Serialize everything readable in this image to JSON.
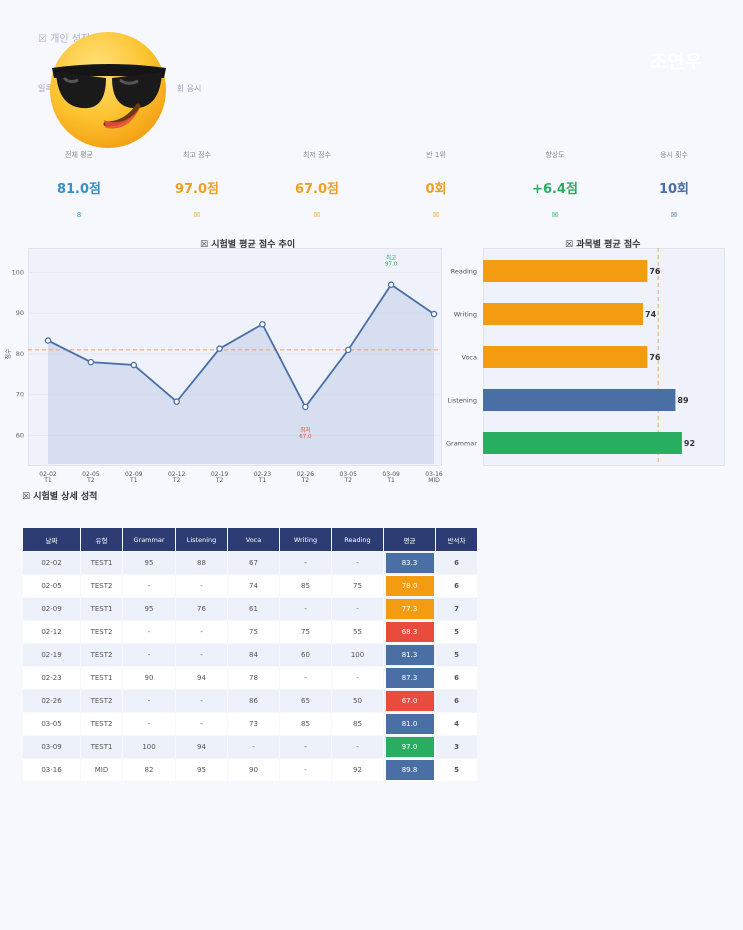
{
  "header": {
    "section_title": "☒ 개인 성적",
    "subtitle_left": "일목",
    "subtitle_right": "회 응시",
    "user_name": "조연우"
  },
  "stats": [
    {
      "label": "전체 평균",
      "value": "81.0점",
      "icon": "8",
      "color": "#3a8fc6"
    },
    {
      "label": "최고 점수",
      "value": "97.0점",
      "icon": "☒",
      "color": "#f0a020"
    },
    {
      "label": "최저 점수",
      "value": "67.0점",
      "icon": "☒",
      "color": "#f0a020"
    },
    {
      "label": "반 1위",
      "value": "0회",
      "icon": "☒",
      "color": "#f0a020"
    },
    {
      "label": "향상도",
      "value": "+6.4점",
      "icon": "☒",
      "color": "#27ae60"
    },
    {
      "label": "응시 횟수",
      "value": "10회",
      "icon": "☒",
      "color": "#4a6fa5"
    }
  ],
  "line_section": {
    "title": "☒ 시험별 평균 점수 추이",
    "ylabel": "점수",
    "max_label": "최고",
    "min_label": "최저"
  },
  "bar_section": {
    "title": "☒ 과목별 평균 점수"
  },
  "table_section": {
    "title": "☒ 시험별 상세 성적"
  },
  "chart_data": [
    {
      "type": "line",
      "title": "☒ 시험별 평균 점수 추이",
      "ylabel": "점수",
      "categories": [
        "02-02",
        "02-05",
        "02-09",
        "02-12",
        "02-19",
        "02-23",
        "02-26",
        "03-05",
        "03-09",
        "03-16"
      ],
      "sub_labels": [
        "T1",
        "T2",
        "T1",
        "T2",
        "T2",
        "T1",
        "T2",
        "T2",
        "T1",
        "MID"
      ],
      "values": [
        83.3,
        78.0,
        77.3,
        68.3,
        81.3,
        87.3,
        67.0,
        81.0,
        97.0,
        89.8
      ],
      "ylim": [
        53,
        106
      ],
      "yticks": [
        60,
        70,
        80,
        90,
        100
      ],
      "reference_line": 81.0,
      "annotations": [
        {
          "label": "최고",
          "value": "97.0"
        },
        {
          "label": "최저",
          "value": "67.0"
        }
      ]
    },
    {
      "type": "bar",
      "orientation": "horizontal",
      "title": "☒ 과목별 평균 점수",
      "categories": [
        "Reading",
        "Writing",
        "Voca",
        "Listening",
        "Grammar"
      ],
      "values": [
        76,
        74,
        76,
        89,
        92
      ],
      "colors": [
        "#f39c12",
        "#f39c12",
        "#f39c12",
        "#4a6fa5",
        "#27ae60"
      ],
      "xlim": [
        0,
        111
      ],
      "reference_line": 81.0
    },
    {
      "type": "table",
      "columns": [
        "날짜",
        "유형",
        "Grammar",
        "Listening",
        "Voca",
        "Writing",
        "Reading",
        "평균",
        "반석차"
      ],
      "rows": [
        [
          "02-02",
          "TEST1",
          "95",
          "88",
          "67",
          "-",
          "-",
          "83.3",
          "6"
        ],
        [
          "02-05",
          "TEST2",
          "-",
          "-",
          "74",
          "85",
          "75",
          "78.0",
          "6"
        ],
        [
          "02-09",
          "TEST1",
          "95",
          "76",
          "61",
          "-",
          "-",
          "77.3",
          "7"
        ],
        [
          "02-12",
          "TEST2",
          "-",
          "-",
          "75",
          "75",
          "55",
          "68.3",
          "5"
        ],
        [
          "02-19",
          "TEST2",
          "-",
          "-",
          "84",
          "60",
          "100",
          "81.3",
          "5"
        ],
        [
          "02-23",
          "TEST1",
          "90",
          "94",
          "78",
          "-",
          "-",
          "87.3",
          "6"
        ],
        [
          "02-26",
          "TEST2",
          "-",
          "-",
          "86",
          "65",
          "50",
          "67.0",
          "6"
        ],
        [
          "03-05",
          "TEST2",
          "-",
          "-",
          "73",
          "85",
          "85",
          "81.0",
          "4"
        ],
        [
          "03-09",
          "TEST1",
          "100",
          "94",
          "-",
          "-",
          "-",
          "97.0",
          "3"
        ],
        [
          "03-16",
          "MID",
          "82",
          "95",
          "90",
          "-",
          "92",
          "89.8",
          "5"
        ]
      ],
      "avg_colors": [
        "#4a6fa5",
        "#f39c12",
        "#f39c12",
        "#e74c3c",
        "#4a6fa5",
        "#4a6fa5",
        "#e74c3c",
        "#4a6fa5",
        "#27ae60",
        "#4a6fa5"
      ]
    }
  ]
}
